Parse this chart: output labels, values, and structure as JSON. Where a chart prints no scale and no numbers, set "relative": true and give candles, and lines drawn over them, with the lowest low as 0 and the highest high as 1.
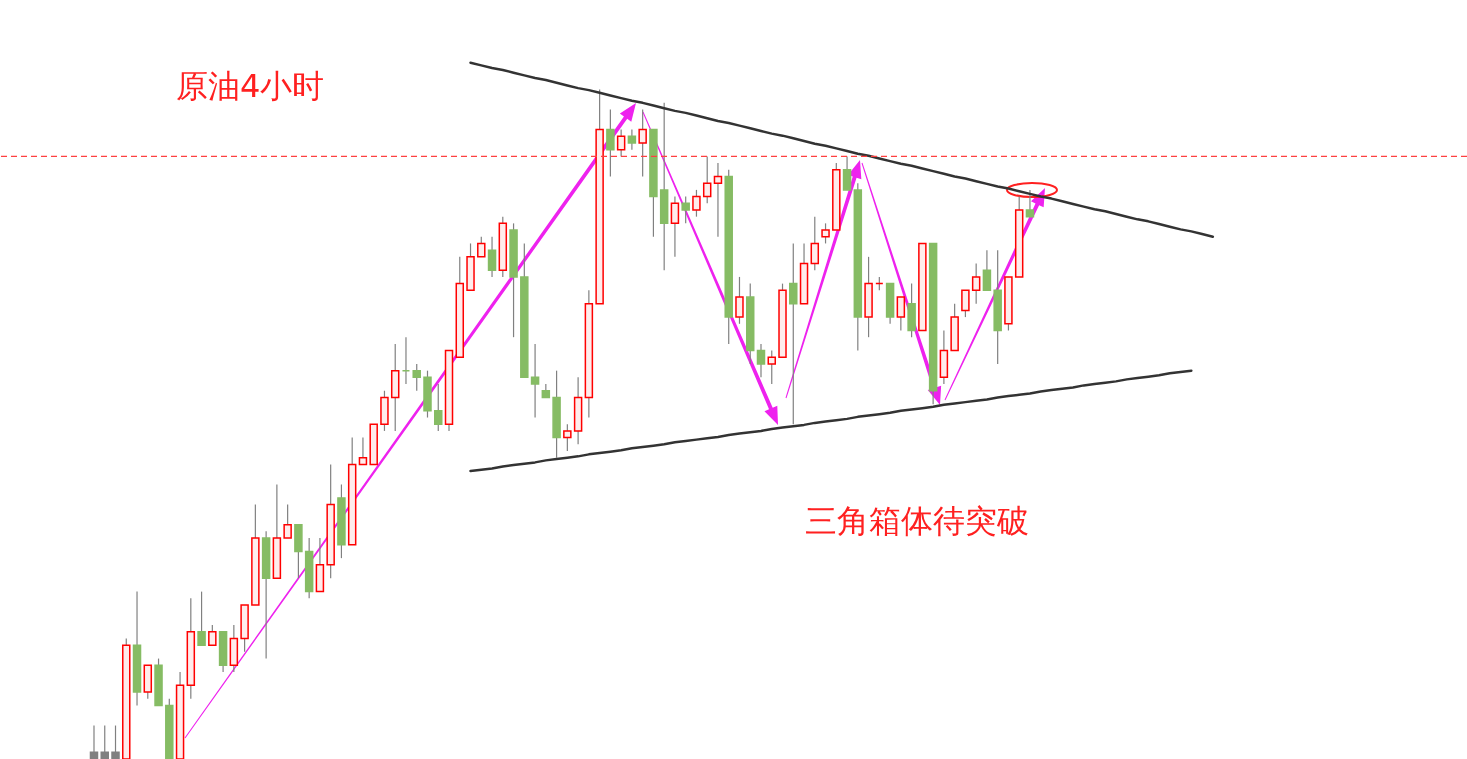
{
  "chart_data": {
    "type": "candlestick",
    "title": "原油4小时",
    "annotations": [
      "三角箱体待突破"
    ],
    "relative": true,
    "categories": [
      null,
      null,
      null,
      null,
      null,
      null,
      null,
      null,
      null,
      null,
      null,
      null,
      null,
      null,
      null,
      null,
      null,
      null,
      null,
      null,
      null,
      null,
      null,
      null,
      null,
      null,
      null,
      null,
      null,
      null,
      null,
      null,
      null,
      null,
      null,
      null,
      null,
      null,
      null,
      null,
      null,
      null,
      null,
      null,
      null,
      null,
      null,
      null,
      null,
      null,
      null,
      null,
      null,
      null,
      null,
      null,
      null,
      null,
      null,
      null,
      null,
      null,
      null,
      null,
      null,
      null,
      null,
      null,
      null,
      null,
      null,
      null,
      null,
      null,
      null,
      null,
      null,
      null,
      null,
      null,
      null,
      null,
      null,
      null,
      null,
      null,
      null,
      null,
      null,
      null,
      null,
      null,
      null,
      null,
      null,
      null,
      null,
      null,
      null,
      null,
      null,
      null,
      null,
      null,
      null
    ],
    "ohlc": [
      [
        0.01,
        0.05,
        0,
        0
      ],
      [
        0.01,
        0.05,
        0,
        0
      ],
      [
        0.01,
        0.05,
        0,
        0
      ],
      [
        0,
        0.18,
        0,
        0.17
      ],
      [
        0.17,
        0.25,
        0.08,
        0.1
      ],
      [
        0.1,
        0.14,
        0.09,
        0.14
      ],
      [
        0.14,
        0.15,
        0.08,
        0.08
      ],
      [
        0.08,
        0.09,
        0,
        0
      ],
      [
        0,
        0.13,
        0,
        0.11
      ],
      [
        0.11,
        0.24,
        0.09,
        0.19
      ],
      [
        0.19,
        0.25,
        0.17,
        0.17
      ],
      [
        0.17,
        0.2,
        0.17,
        0.19
      ],
      [
        0.19,
        0.19,
        0.13,
        0.14
      ],
      [
        0.14,
        0.2,
        0.13,
        0.18
      ],
      [
        0.18,
        0.23,
        0.16,
        0.23
      ],
      [
        0.23,
        0.38,
        0.23,
        0.33
      ],
      [
        0.33,
        0.34,
        0.15,
        0.27
      ],
      [
        0.27,
        0.41,
        0.27,
        0.33
      ],
      [
        0.33,
        0.38,
        0.33,
        0.35
      ],
      [
        0.35,
        0.35,
        0.27,
        0.31
      ],
      [
        0.31,
        0.33,
        0.24,
        0.25
      ],
      [
        0.25,
        0.33,
        0.25,
        0.29
      ],
      [
        0.29,
        0.44,
        0.27,
        0.38
      ],
      [
        0.39,
        0.41,
        0.3,
        0.32
      ],
      [
        0.32,
        0.48,
        0.32,
        0.44
      ],
      [
        0.44,
        0.48,
        0.44,
        0.45
      ],
      [
        0.44,
        0.5,
        0.44,
        0.5
      ],
      [
        0.5,
        0.55,
        0.49,
        0.54
      ],
      [
        0.54,
        0.62,
        0.49,
        0.58
      ],
      [
        0.58,
        0.63,
        0.56,
        0.58
      ],
      [
        0.58,
        0.59,
        0.55,
        0.57
      ],
      [
        0.57,
        0.58,
        0.51,
        0.52
      ],
      [
        0.52,
        0.56,
        0.49,
        0.5
      ],
      [
        0.5,
        0.61,
        0.49,
        0.61
      ],
      [
        0.6,
        0.75,
        0.6,
        0.71
      ],
      [
        0.7,
        0.77,
        0.7,
        0.75
      ],
      [
        0.75,
        0.78,
        0.75,
        0.77
      ],
      [
        0.76,
        0.78,
        0.72,
        0.73
      ],
      [
        0.73,
        0.81,
        0.72,
        0.8
      ],
      [
        0.79,
        0.8,
        0.63,
        0.72
      ],
      [
        0.72,
        0.77,
        0.57,
        0.57
      ],
      [
        0.57,
        0.62,
        0.51,
        0.56
      ],
      [
        0.55,
        0.56,
        0.54,
        0.54
      ],
      [
        0.54,
        0.58,
        0.45,
        0.48
      ],
      [
        0.48,
        0.5,
        0.46,
        0.49
      ],
      [
        0.49,
        0.57,
        0.47,
        0.54
      ],
      [
        0.54,
        0.7,
        0.51,
        0.68
      ],
      [
        0.68,
        1.0,
        0.68,
        0.94
      ],
      [
        0.94,
        0.97,
        0.87,
        0.91
      ],
      [
        0.91,
        0.94,
        0.9,
        0.93
      ],
      [
        0.93,
        0.94,
        0.91,
        0.92
      ],
      [
        0.92,
        0.97,
        0.87,
        0.94
      ],
      [
        0.94,
        0.94,
        0.78,
        0.84
      ],
      [
        0.85,
        0.98,
        0.73,
        0.8
      ],
      [
        0.8,
        0.84,
        0.75,
        0.83
      ],
      [
        0.83,
        0.84,
        0.8,
        0.82
      ],
      [
        0.82,
        0.85,
        0.81,
        0.84
      ],
      [
        0.84,
        0.9,
        0.83,
        0.86
      ],
      [
        0.86,
        0.89,
        0.78,
        0.87
      ],
      [
        0.87,
        0.88,
        0.62,
        0.66
      ],
      [
        0.66,
        0.72,
        0.65,
        0.69
      ],
      [
        0.69,
        0.71,
        0.59,
        0.61
      ],
      [
        0.61,
        0.62,
        0.57,
        0.59
      ],
      [
        0.59,
        0.61,
        0.56,
        0.6
      ],
      [
        0.6,
        0.71,
        0.6,
        0.7
      ],
      [
        0.71,
        0.77,
        0.5,
        0.68
      ],
      [
        0.68,
        0.77,
        0.68,
        0.74
      ],
      [
        0.74,
        0.81,
        0.73,
        0.77
      ],
      [
        0.78,
        0.8,
        0.77,
        0.79
      ],
      [
        0.79,
        0.89,
        0.79,
        0.88
      ],
      [
        0.88,
        0.9,
        0.85,
        0.85
      ],
      [
        0.85,
        0.86,
        0.61,
        0.66
      ],
      [
        0.66,
        0.75,
        0.63,
        0.71
      ],
      [
        0.71,
        0.72,
        0.7,
        0.71
      ],
      [
        0.71,
        0.71,
        0.65,
        0.66
      ],
      [
        0.66,
        0.69,
        0.64,
        0.69
      ],
      [
        0.68,
        0.71,
        0.63,
        0.64
      ],
      [
        0.64,
        0.77,
        0.64,
        0.77
      ],
      [
        0.77,
        0.77,
        0.53,
        0.55
      ],
      [
        0.57,
        0.64,
        0.56,
        0.61
      ],
      [
        0.61,
        0.68,
        0.61,
        0.66
      ],
      [
        0.67,
        0.7,
        0.66,
        0.7
      ],
      [
        0.7,
        0.74,
        0.68,
        0.72
      ],
      [
        0.73,
        0.76,
        0.7,
        0.7
      ],
      [
        0.7,
        0.76,
        0.59,
        0.64
      ],
      [
        0.65,
        0.72,
        0.64,
        0.72
      ],
      [
        0.72,
        0.84,
        0.72,
        0.82
      ],
      [
        0.82,
        0.85,
        0.81,
        0.81
      ],
      null,
      null,
      null,
      null,
      null,
      null,
      null,
      null,
      null,
      null,
      null,
      null,
      null,
      null,
      null,
      null,
      null
    ],
    "colors": [
      "#808080",
      "#808080",
      "#808080",
      "#ff0000",
      "#86bc64",
      "#ff0000",
      "#86bc64",
      "#86bc64",
      "#ff0000",
      "#ff0000",
      "#86bc64",
      "#ff0000",
      "#86bc64",
      "#ff0000",
      "#ff0000",
      "#ff0000",
      "#86bc64",
      "#ff0000",
      "#ff0000",
      "#86bc64",
      "#86bc64",
      "#ff0000",
      "#ff0000",
      "#86bc64",
      "#ff0000",
      "#ff0000",
      "#ff0000",
      "#ff0000",
      "#ff0000",
      "#86bc64",
      "#86bc64",
      "#86bc64",
      "#86bc64",
      "#ff0000",
      "#ff0000",
      "#ff0000",
      "#ff0000",
      "#86bc64",
      "#ff0000",
      "#86bc64",
      "#86bc64",
      "#86bc64",
      "#86bc64",
      "#86bc64",
      "#ff0000",
      "#ff0000",
      "#ff0000",
      "#ff0000",
      "#86bc64",
      "#ff0000",
      "#86bc64",
      "#ff0000",
      "#86bc64",
      "#86bc64",
      "#ff0000",
      "#86bc64",
      "#ff0000",
      "#ff0000",
      "#ff0000",
      "#86bc64",
      "#ff0000",
      "#86bc64",
      "#86bc64",
      "#ff0000",
      "#ff0000",
      "#86bc64",
      "#ff0000",
      "#ff0000",
      "#ff0000",
      "#ff0000",
      "#86bc64",
      "#86bc64",
      "#ff0000",
      "#ff0000",
      "#86bc64",
      "#ff0000",
      "#86bc64",
      "#ff0000",
      "#86bc64",
      "#ff0000",
      "#ff0000",
      "#ff0000",
      "#ff0000",
      "#86bc64",
      "#86bc64",
      "#ff0000",
      "#ff0000",
      "#86bc64",
      null,
      null,
      null,
      null,
      null,
      null,
      null,
      null,
      null,
      null,
      null,
      null,
      null,
      null,
      null,
      null,
      null
    ],
    "series": [
      {
        "type": "line",
        "color": "#333333",
        "values": [
          null,
          null,
          null,
          null,
          null,
          null,
          null,
          null,
          null,
          null,
          null,
          null,
          null,
          null,
          null,
          null,
          null,
          null,
          null,
          null,
          null,
          null,
          null,
          null,
          null,
          null,
          null,
          null,
          null,
          null,
          null,
          null,
          null,
          null,
          null,
          1.04,
          1.036,
          1.032,
          1.029,
          1.025,
          1.021,
          1.017,
          1.014,
          1.01,
          1.006,
          1.002,
          0.999,
          0.995,
          0.991,
          0.987,
          0.983,
          0.98,
          0.976,
          0.972,
          0.968,
          0.965,
          0.961,
          0.957,
          0.953,
          0.95,
          0.946,
          0.942,
          0.938,
          0.934,
          0.931,
          0.927,
          0.923,
          0.919,
          0.916,
          0.912,
          0.908,
          0.904,
          0.901,
          0.897,
          0.893,
          0.889,
          0.886,
          0.882,
          0.878,
          0.874,
          0.87,
          0.867,
          0.863,
          0.859,
          0.855,
          0.852,
          0.848,
          0.844,
          0.84,
          0.837,
          0.833,
          0.829,
          0.825,
          0.821,
          0.818,
          0.814,
          0.81,
          0.806,
          0.803,
          0.799,
          0.795,
          0.791,
          0.788,
          0.784,
          0.78
        ]
      },
      {
        "type": "line",
        "color": "#333333",
        "values": [
          null,
          null,
          null,
          null,
          null,
          null,
          null,
          null,
          null,
          null,
          null,
          null,
          null,
          null,
          null,
          null,
          null,
          null,
          null,
          null,
          null,
          null,
          null,
          null,
          null,
          null,
          null,
          null,
          null,
          null,
          null,
          null,
          null,
          null,
          null,
          0.43,
          0.432,
          0.434,
          0.437,
          0.439,
          0.441,
          0.443,
          0.446,
          0.448,
          0.45,
          0.452,
          0.455,
          0.457,
          0.459,
          0.461,
          0.464,
          0.466,
          0.468,
          0.47,
          0.473,
          0.475,
          0.477,
          0.479,
          0.481,
          0.484,
          0.486,
          0.488,
          0.49,
          0.493,
          0.495,
          0.497,
          0.499,
          0.502,
          0.504,
          0.506,
          0.508,
          0.511,
          0.513,
          0.515,
          0.517,
          0.52,
          0.522,
          0.524,
          0.526,
          0.529,
          0.531,
          0.533,
          0.535,
          0.537,
          0.54,
          0.542,
          0.544,
          0.546,
          0.549,
          0.551,
          0.553,
          0.555,
          0.558,
          0.56,
          0.562,
          0.564,
          0.567,
          0.569,
          0.571,
          0.573,
          0.576,
          0.578,
          0.58,
          null,
          null
        ]
      }
    ],
    "ref_lines": [
      {
        "axis": "y",
        "value": 0.9,
        "color": "#ff4040",
        "line_style": "dashed"
      }
    ]
  }
}
